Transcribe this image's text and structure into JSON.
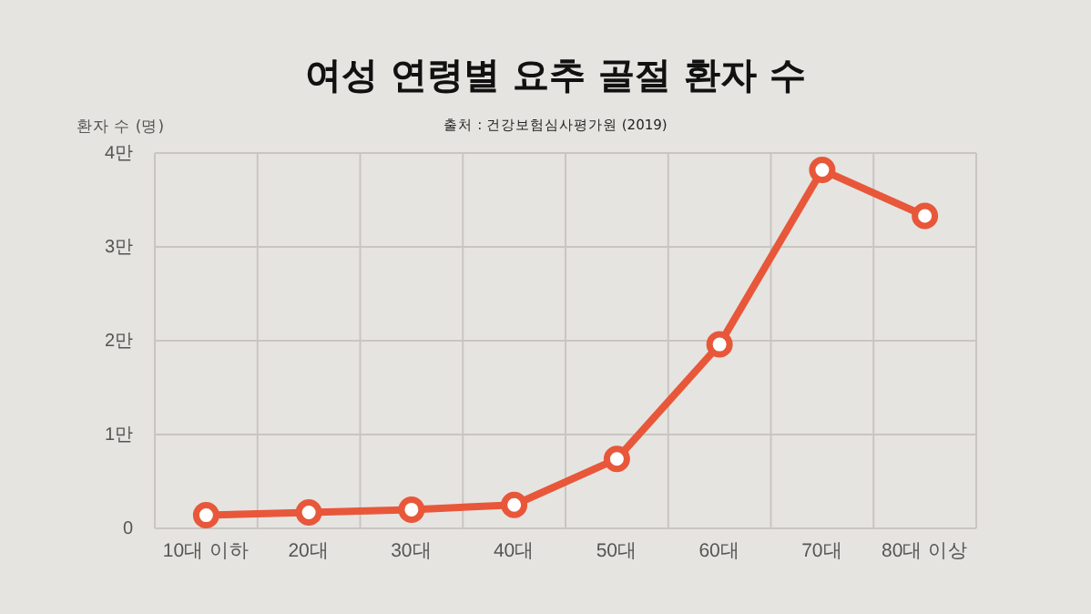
{
  "chart_data": {
    "type": "line",
    "title": "여성 연령별 요추 골절 환자 수",
    "subtitle": "출처 : 건강보험심사평가원 (2019)",
    "ylabel": "환자 수 (명)",
    "categories": [
      "10대 이하",
      "20대",
      "30대",
      "40대",
      "50대",
      "60대",
      "70대",
      "80대 이상"
    ],
    "series": [
      {
        "color": "#e8573a",
        "values": [
          0.14,
          0.17,
          0.2,
          0.25,
          0.74,
          1.96,
          3.82,
          3.33
        ]
      }
    ],
    "ylim": [
      0,
      4
    ],
    "yticks": [
      0,
      {
        "value": 1,
        "label": "1만"
      },
      {
        "value": 2,
        "label": "2만"
      },
      {
        "value": 3,
        "label": "3만"
      },
      {
        "value": 4,
        "label": "4만"
      }
    ],
    "grid": true,
    "marker": "circle",
    "line_style": "solid"
  }
}
